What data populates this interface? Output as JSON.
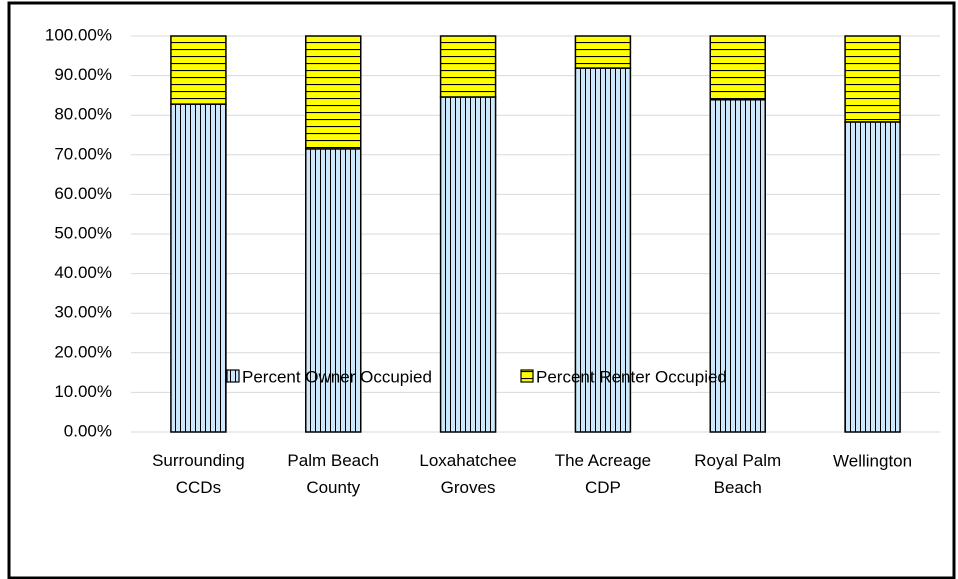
{
  "chart_data": {
    "type": "stacked_bar",
    "categories": [
      "Surrounding CCDs",
      "Palm Beach County",
      "Loxahatchee Groves",
      "The Acreage CDP",
      "Royal Palm Beach",
      "Wellington"
    ],
    "series": [
      {
        "name": "Percent Owner Occupied",
        "color": "#cce8fa",
        "values": [
          82.8,
          71.5,
          84.6,
          91.9,
          83.9,
          78.3
        ]
      },
      {
        "name": "Percent Renter Occupied",
        "color": "#ffff00",
        "values": [
          17.2,
          28.5,
          15.4,
          8.1,
          16.1,
          21.7
        ]
      }
    ],
    "ylim": [
      0,
      100
    ],
    "yticks": [
      {
        "value": 0,
        "label": "0.00%"
      },
      {
        "value": 10,
        "label": "10.00%"
      },
      {
        "value": 20,
        "label": "20.00%"
      },
      {
        "value": 30,
        "label": "30.00%"
      },
      {
        "value": 40,
        "label": "40.00%"
      },
      {
        "value": 50,
        "label": "50.00%"
      },
      {
        "value": 60,
        "label": "60.00%"
      },
      {
        "value": 70,
        "label": "70.00%"
      },
      {
        "value": 80,
        "label": "80.00%"
      },
      {
        "value": 90,
        "label": "90.00%"
      },
      {
        "value": 100,
        "label": "100.00%"
      }
    ],
    "grid": true,
    "legend": "bottom"
  }
}
